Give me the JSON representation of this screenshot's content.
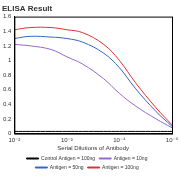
{
  "chart_data": {
    "type": "line",
    "title": "ELISA Result",
    "x_label": "Serial Dilutions of Antibody",
    "x": [
      0.01,
      0.005,
      0.002,
      0.001,
      0.0005,
      0.0002,
      0.0001,
      5e-05,
      2e-05,
      1e-05
    ],
    "series": [
      {
        "name": "Control Antigen = 100ng",
        "color": "#000000",
        "values": [
          0.03,
          0.03,
          0.03,
          0.03,
          0.03,
          0.03,
          0.03,
          0.03,
          0.03,
          0.03
        ]
      },
      {
        "name": "Antigen = 10ng",
        "color": "#9966cc",
        "values": [
          1.22,
          1.2,
          1.15,
          1.05,
          0.95,
          0.75,
          0.55,
          0.38,
          0.2,
          0.08
        ]
      },
      {
        "name": "Antigen = 50ng",
        "color": "#3366cc",
        "values": [
          1.3,
          1.33,
          1.32,
          1.3,
          1.25,
          1.1,
          0.9,
          0.62,
          0.3,
          0.1
        ]
      },
      {
        "name": "Antigen = 100ng",
        "color": "#e03030",
        "values": [
          1.42,
          1.45,
          1.45,
          1.42,
          1.38,
          1.22,
          1.0,
          0.7,
          0.35,
          0.12
        ]
      }
    ],
    "log": "x",
    "xlim": [
      0.01,
      1e-05
    ],
    "xticks": [
      {
        "value": 0.01,
        "label": "10⁻²"
      },
      {
        "value": 0.001,
        "label": "10⁻³"
      },
      {
        "value": 0.0001,
        "label": "10⁻⁴"
      },
      {
        "value": 1e-05,
        "label": "10⁻⁵"
      }
    ],
    "ylim": [
      0,
      1.6
    ],
    "yticks": [
      0,
      0.2,
      0.4,
      0.6,
      0.8,
      1,
      1.2,
      1.4,
      1.6
    ],
    "grid": false,
    "legend": "bottom"
  }
}
